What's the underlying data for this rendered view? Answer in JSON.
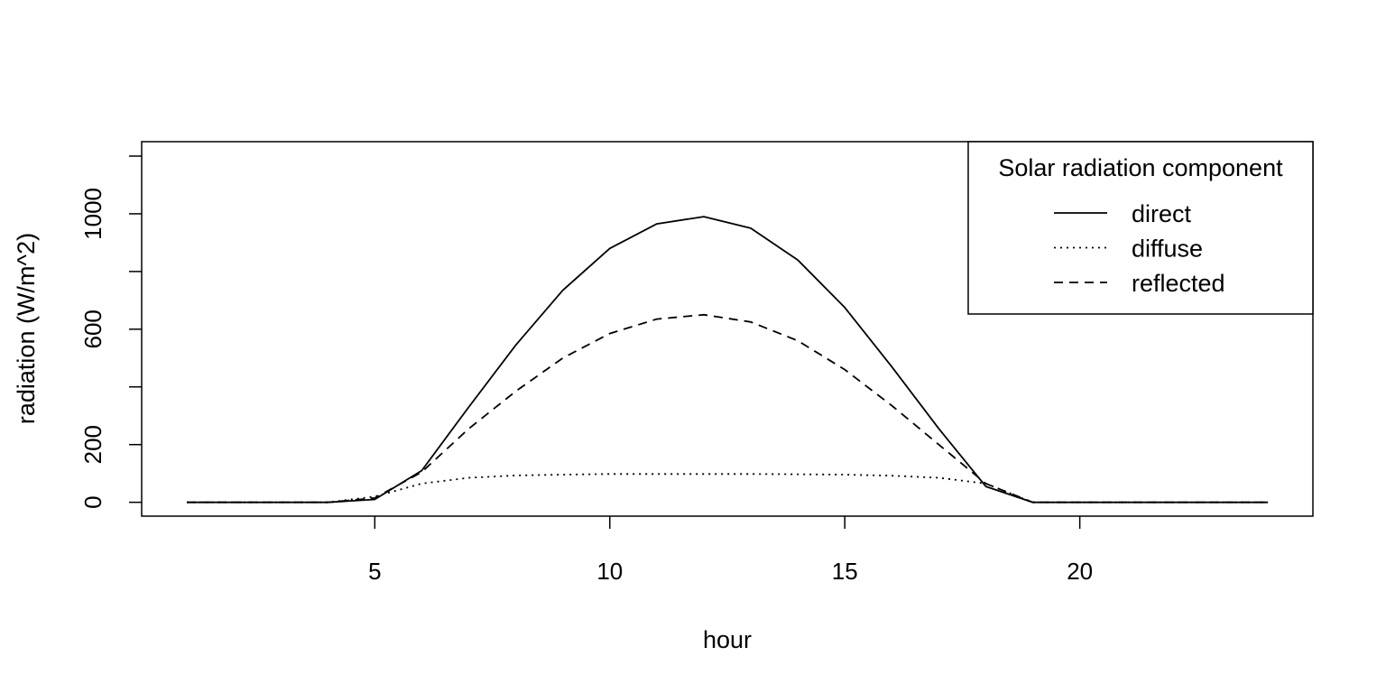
{
  "chart_data": {
    "type": "line",
    "title": "",
    "xlabel": "hour",
    "ylabel": "radiation (W/m^2)",
    "xlim": [
      0.04,
      24.96
    ],
    "ylim": [
      -48,
      1250
    ],
    "x_ticks": [
      5,
      10,
      15,
      20
    ],
    "y_ticks": [
      0,
      200,
      600,
      1000
    ],
    "y_tick_marks": [
      0,
      200,
      400,
      600,
      800,
      1000,
      1200
    ],
    "grid": false,
    "legend": {
      "title": "Solar radiation component",
      "position": "top-right"
    },
    "x": [
      1,
      2,
      3,
      4,
      5,
      6,
      7,
      8,
      9,
      10,
      11,
      12,
      13,
      14,
      15,
      16,
      17,
      18,
      19,
      20,
      21,
      22,
      23,
      24
    ],
    "series": [
      {
        "name": "direct",
        "line_style": "solid",
        "values": [
          0,
          0,
          0,
          0,
          10,
          110,
          330,
          545,
          735,
          880,
          965,
          990,
          950,
          840,
          675,
          470,
          255,
          55,
          0,
          0,
          0,
          0,
          0,
          0
        ]
      },
      {
        "name": "diffuse",
        "line_style": "dotted",
        "values": [
          0,
          0,
          0,
          0,
          20,
          65,
          85,
          93,
          96,
          98,
          98,
          98,
          98,
          97,
          96,
          92,
          85,
          65,
          0,
          0,
          0,
          0,
          0,
          0
        ]
      },
      {
        "name": "reflected",
        "line_style": "dashed",
        "values": [
          0,
          0,
          0,
          0,
          15,
          105,
          255,
          385,
          500,
          585,
          635,
          650,
          625,
          560,
          460,
          335,
          200,
          65,
          0,
          0,
          0,
          0,
          0,
          0
        ]
      }
    ]
  }
}
